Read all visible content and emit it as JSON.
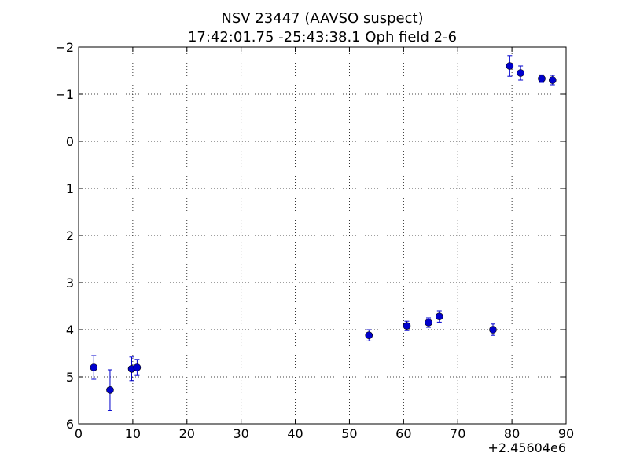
{
  "chart_data": {
    "type": "scatter",
    "title": "NSV 23447 (AAVSO suspect)",
    "subtitle": "17:42:01.75 -25:43:38.1 Oph field 2-6",
    "xlabel": "",
    "ylabel": "",
    "x_offset_label": "+2.45604e6",
    "xlim": [
      0,
      90
    ],
    "ylim": [
      6,
      -2
    ],
    "y_inverted": true,
    "grid": true,
    "x_ticks": [
      0,
      10,
      20,
      30,
      40,
      50,
      60,
      70,
      80,
      90
    ],
    "y_ticks": [
      -2,
      -1,
      0,
      1,
      2,
      3,
      4,
      5,
      6
    ],
    "y_tick_labels": [
      "−2",
      "−1",
      "0",
      "1",
      "2",
      "3",
      "4",
      "5",
      "6"
    ],
    "marker_color": "#0000cc",
    "errorbar_color": "#0000cc",
    "points": [
      {
        "x": 2.8,
        "y": 4.8,
        "err": 0.25
      },
      {
        "x": 5.8,
        "y": 5.28,
        "err": 0.43
      },
      {
        "x": 9.8,
        "y": 4.83,
        "err": 0.25
      },
      {
        "x": 10.8,
        "y": 4.8,
        "err": 0.17
      },
      {
        "x": 53.6,
        "y": 4.12,
        "err": 0.12
      },
      {
        "x": 60.6,
        "y": 3.92,
        "err": 0.1
      },
      {
        "x": 64.6,
        "y": 3.85,
        "err": 0.1
      },
      {
        "x": 66.6,
        "y": 3.72,
        "err": 0.12
      },
      {
        "x": 76.5,
        "y": 4.0,
        "err": 0.12
      },
      {
        "x": 79.6,
        "y": -1.6,
        "err": 0.22
      },
      {
        "x": 81.6,
        "y": -1.45,
        "err": 0.15
      },
      {
        "x": 85.5,
        "y": -1.33,
        "err": 0.08
      },
      {
        "x": 87.5,
        "y": -1.3,
        "err": 0.1
      }
    ]
  }
}
